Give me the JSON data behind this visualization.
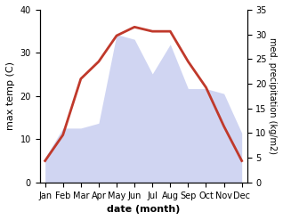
{
  "months": [
    "Jan",
    "Feb",
    "Mar",
    "Apr",
    "May",
    "Jun",
    "Jul",
    "Aug",
    "Sep",
    "Oct",
    "Nov",
    "Dec"
  ],
  "temperature": [
    5,
    11,
    24,
    28,
    34,
    36,
    35,
    35,
    28,
    22,
    13,
    5
  ],
  "precipitation": [
    5,
    11,
    11,
    12,
    30,
    29,
    22,
    28,
    19,
    19,
    18,
    10
  ],
  "temp_color": "#c0392b",
  "precip_color": "#aab4e8",
  "temp_ylim": [
    0,
    40
  ],
  "precip_ylim": [
    0,
    35
  ],
  "temp_yticks": [
    0,
    10,
    20,
    30,
    40
  ],
  "precip_yticks": [
    0,
    5,
    10,
    15,
    20,
    25,
    30,
    35
  ],
  "xlabel": "date (month)",
  "ylabel_left": "max temp (C)",
  "ylabel_right": "med. precipitation (kg/m2)",
  "temp_linewidth": 2.0,
  "fig_width": 3.18,
  "fig_height": 2.47,
  "dpi": 100
}
